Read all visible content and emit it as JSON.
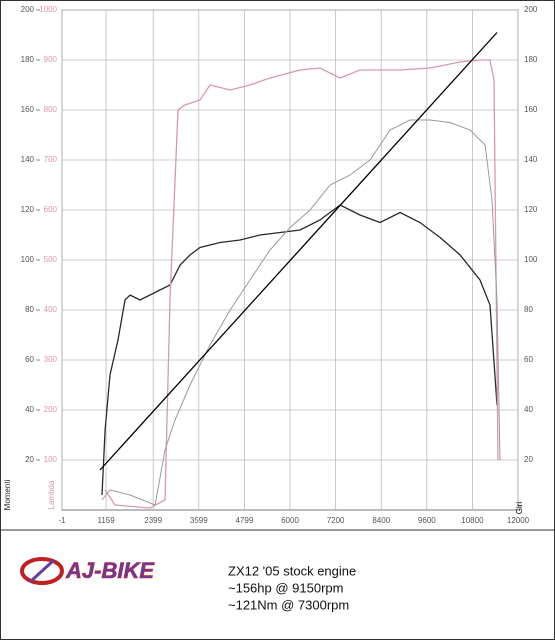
{
  "chart_data": {
    "type": "line",
    "xlim": [
      -1,
      12000
    ],
    "xticks": [
      -1,
      1159,
      2399,
      3599,
      4799,
      6000,
      7200,
      8400,
      9600,
      10800,
      12000
    ],
    "ylim": [
      0,
      200
    ],
    "yticks": [
      20,
      40,
      60,
      80,
      100,
      120,
      140,
      160,
      180,
      200
    ],
    "y2lim": [
      0,
      200
    ],
    "y2ticks": [
      20,
      40,
      60,
      80,
      100,
      120,
      140,
      160,
      180,
      200
    ],
    "y3lim": [
      0,
      1000
    ],
    "y3ticks": [
      100,
      200,
      300,
      400,
      500,
      600,
      700,
      800,
      900,
      1000
    ],
    "grid": true,
    "series": [
      {
        "name": "Momenti",
        "color": "#2a2a2a",
        "axis": "y",
        "x": [
          1053,
          1132,
          1263,
          1474,
          1658,
          1790,
          2053,
          2316,
          2579,
          2842,
          3106,
          3369,
          3632,
          4158,
          4685,
          5211,
          5738,
          6264,
          6790,
          7317,
          7843,
          8369,
          8896,
          9422,
          9949,
          10475,
          11001,
          11264,
          11448
        ],
        "values": [
          6,
          32,
          54,
          68,
          84,
          86,
          84,
          86,
          88,
          90,
          98,
          102,
          105,
          107,
          108,
          110,
          111,
          112,
          116,
          122,
          118,
          115,
          119,
          115,
          109,
          102,
          92,
          82,
          42
        ]
      },
      {
        "name": "Lambda",
        "color": "#d99aa6",
        "axis": "y3",
        "x": [
          1132,
          1395,
          2316,
          2711,
          2842,
          3053,
          3237,
          3632,
          3895,
          4422,
          4948,
          5474,
          6264,
          6790,
          7317,
          7843,
          8896,
          9685,
          10475,
          11001,
          11264,
          11369,
          11474
        ],
        "values": [
          40,
          10,
          4,
          20,
          420,
          800,
          810,
          820,
          850,
          840,
          850,
          864,
          880,
          884,
          864,
          880,
          880,
          884,
          896,
          900,
          900,
          860,
          100
        ]
      },
      {
        "color": "#9a9a9a",
        "axis": "y2",
        "x": [
          1053,
          1263,
          1790,
          2448,
          2711,
          2974,
          3369,
          3895,
          4422,
          4948,
          5474,
          6001,
          6527,
          7054,
          7580,
          8106,
          8633,
          9159,
          9685,
          10212,
          10738,
          11133,
          11317,
          11448,
          11527
        ],
        "values": [
          4,
          8,
          6,
          2,
          24,
          36,
          50,
          66,
          80,
          92,
          104,
          113,
          120,
          130,
          134,
          140,
          152,
          156,
          156,
          155,
          152,
          146,
          124,
          84,
          20
        ]
      },
      {
        "name": "Giri",
        "color": "#000000",
        "axis": "y2",
        "x": [
          1000,
          11448
        ],
        "values": [
          16,
          191
        ]
      }
    ]
  },
  "caption": {
    "logo": "AJ-BIKE",
    "lines": [
      "ZX12 '05 stock engine",
      "~156hp @ 9150rpm",
      "~121Nm @ 7300rpm"
    ]
  }
}
